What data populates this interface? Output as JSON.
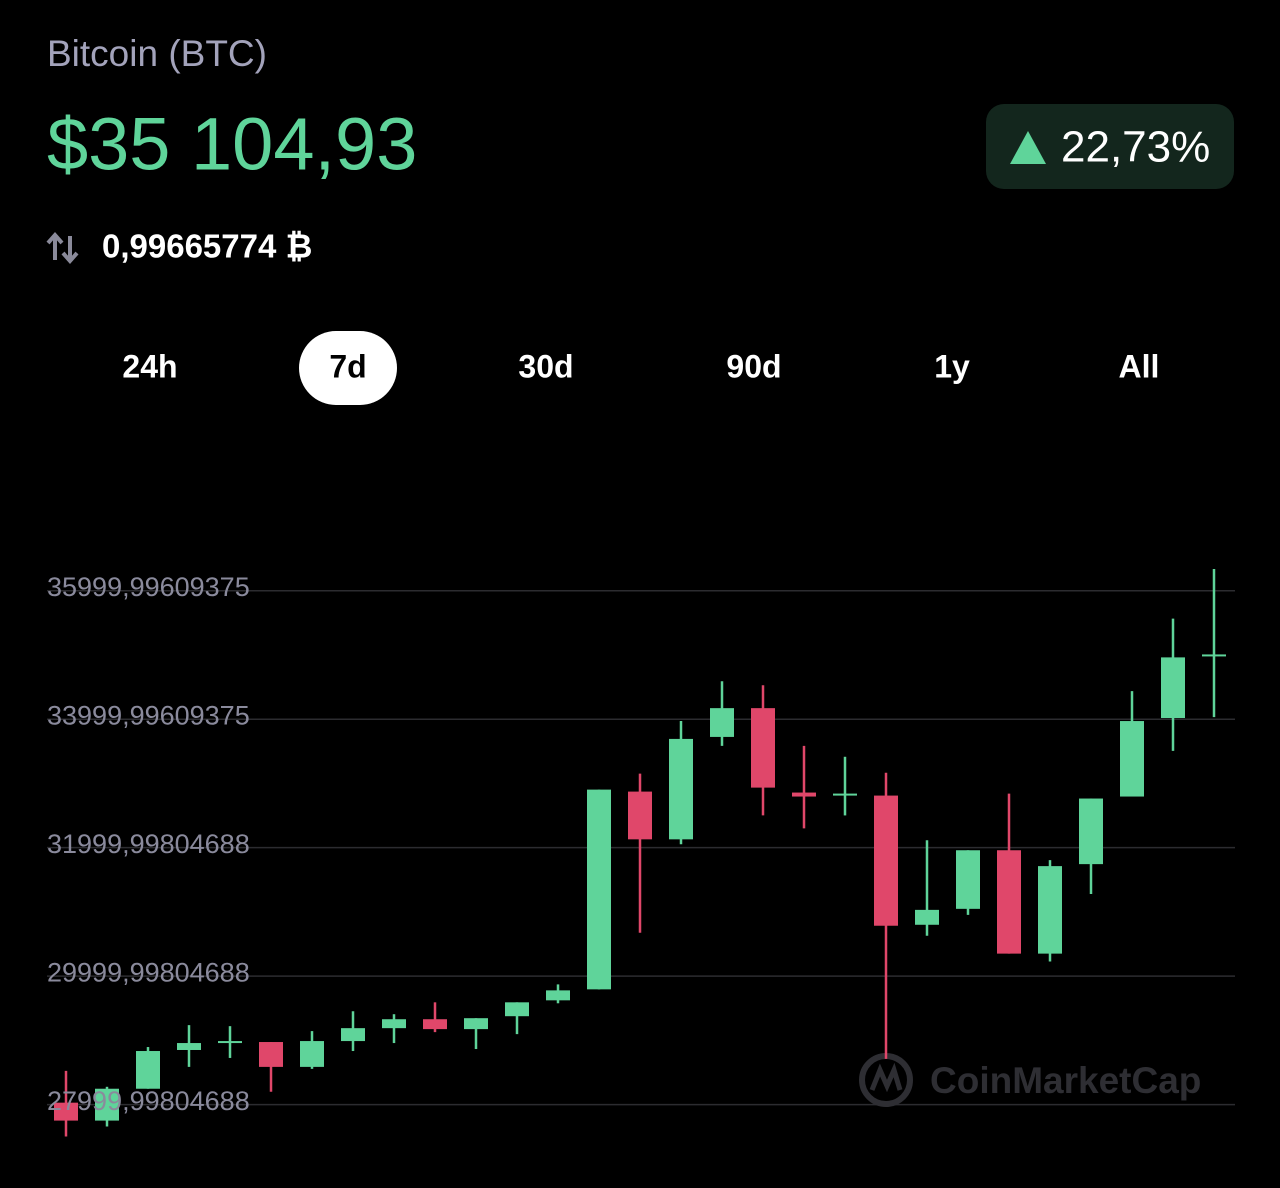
{
  "header": {
    "title": "Bitcoin (BTC)",
    "price": "$35 104,93",
    "change": "22,73%",
    "btc_amount": "0,99665774 ₿"
  },
  "tabs": [
    "24h",
    "7d",
    "30d",
    "90d",
    "1y",
    "All"
  ],
  "selected_tab": 1,
  "watermark": "CoinMarketCap",
  "chart_data": {
    "type": "candlestick",
    "categories": [
      null,
      null,
      null,
      null,
      null,
      null,
      null,
      null,
      null,
      null,
      null,
      null,
      null,
      null,
      null,
      null,
      null,
      null,
      null,
      null,
      null,
      null,
      null,
      null,
      null,
      null,
      null,
      null,
      null
    ],
    "open": [
      28031,
      27752,
      28248,
      28851,
      28959,
      28975,
      28588,
      28990,
      29191,
      29330,
      29176,
      29377,
      29624,
      29795,
      32873,
      32130,
      33724,
      34172,
      32858,
      32811,
      32811,
      30800,
      31048,
      31960,
      30351,
      31744,
      32796,
      34018,
      34992
    ],
    "high": [
      28526,
      28278,
      28897,
      29238,
      29222,
      28975,
      29145,
      29454,
      29408,
      29593,
      29346,
      29593,
      29872,
      32904,
      33152,
      33971,
      34590,
      34528,
      33585,
      33415,
      33167,
      32115,
      31960,
      32842,
      31806,
      32765,
      34436,
      35565,
      36338
    ],
    "low": [
      27505,
      27660,
      28248,
      28588,
      28727,
      28201,
      28557,
      28835,
      28959,
      29129,
      28866,
      29098,
      29578,
      29795,
      30676,
      32053,
      33585,
      32502,
      32301,
      32502,
      28712,
      30630,
      30955,
      30351,
      30228,
      31280,
      32796,
      33507,
      34032
    ],
    "close": [
      27752,
      28248,
      28835,
      28959,
      28990,
      28588,
      28990,
      29191,
      29330,
      29176,
      29346,
      29593,
      29779,
      32904,
      32130,
      33693,
      34172,
      32935,
      32796,
      32842,
      30785,
      31032,
      31960,
      30351,
      31713,
      32765,
      33971,
      34962,
      35008
    ],
    "up_color": "#5fd49a",
    "down_color": "#e0476a",
    "ylim": [
      27450,
      36400
    ],
    "yticks": [
      {
        "value": 35999.99609375,
        "label": "35999,99609375"
      },
      {
        "value": 33999.99609375,
        "label": "33999,99609375"
      },
      {
        "value": 31999.99804688,
        "label": "31999,99804688"
      },
      {
        "value": 29999.99804688,
        "label": "29999,99804688"
      },
      {
        "value": 27999.99804688,
        "label": "27999,99804688"
      }
    ],
    "grid": true
  }
}
